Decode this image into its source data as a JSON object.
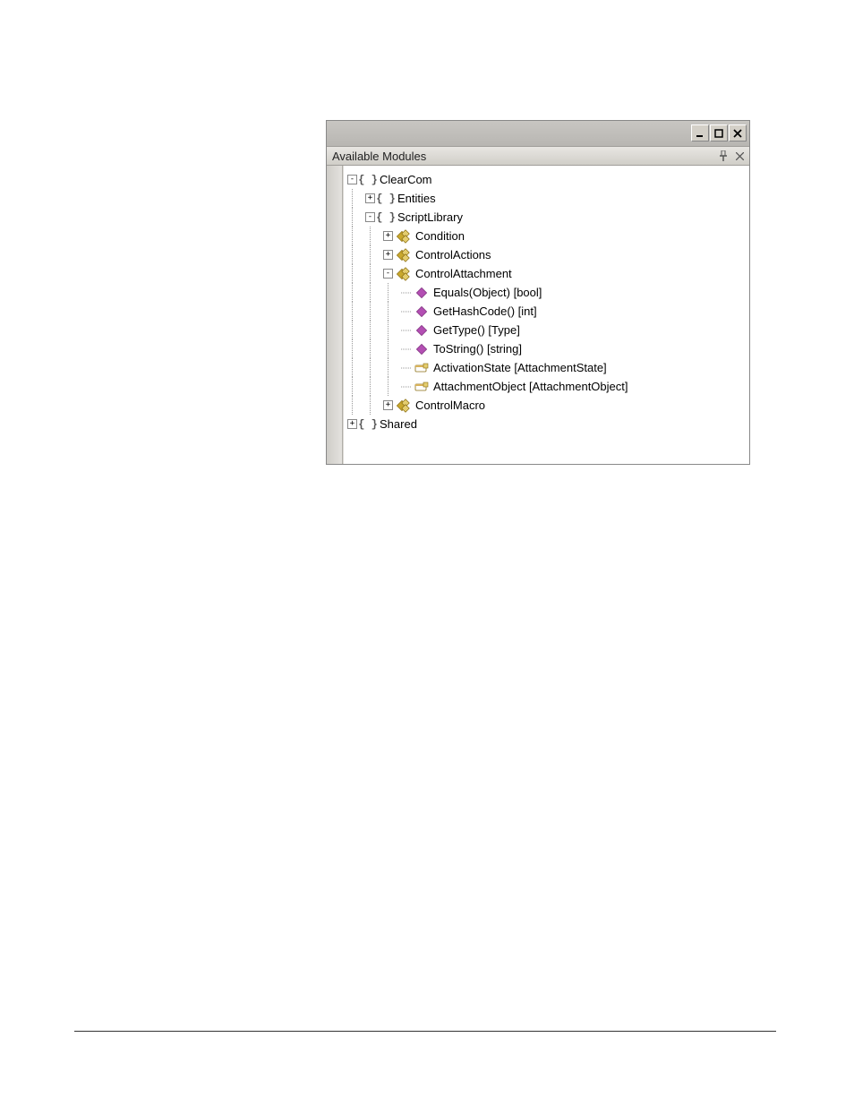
{
  "panel": {
    "title": "Available Modules"
  },
  "colors": {
    "titlebar_bg": "#c0beb9",
    "panel_header_bg": "#dcdad4",
    "tree_bg": "#ffffff",
    "text": "#000000",
    "dotted_line": "#999999",
    "class_icon": "#c9a82e",
    "method_icon": "#b34fb3",
    "property_icon": "#d9b25a",
    "braces_icon": "#666666"
  },
  "tree": {
    "nodes": [
      {
        "id": "ClearCom",
        "label": "ClearCom",
        "depth": 0,
        "icon": "namespace",
        "expander": "minus"
      },
      {
        "id": "Entities",
        "label": "Entities",
        "depth": 1,
        "icon": "namespace",
        "expander": "plus"
      },
      {
        "id": "ScriptLibrary",
        "label": "ScriptLibrary",
        "depth": 1,
        "icon": "namespace",
        "expander": "minus"
      },
      {
        "id": "Condition",
        "label": "Condition",
        "depth": 2,
        "icon": "class",
        "expander": "plus"
      },
      {
        "id": "ControlActions",
        "label": "ControlActions",
        "depth": 2,
        "icon": "class",
        "expander": "plus"
      },
      {
        "id": "ControlAttachment",
        "label": "ControlAttachment",
        "depth": 2,
        "icon": "class",
        "expander": "minus"
      },
      {
        "id": "Equals",
        "label": "Equals(Object) [bool]",
        "depth": 3,
        "icon": "method",
        "expander": "none"
      },
      {
        "id": "GetHashCode",
        "label": "GetHashCode() [int]",
        "depth": 3,
        "icon": "method",
        "expander": "none"
      },
      {
        "id": "GetType",
        "label": "GetType() [Type]",
        "depth": 3,
        "icon": "method",
        "expander": "none"
      },
      {
        "id": "ToString",
        "label": "ToString() [string]",
        "depth": 3,
        "icon": "method",
        "expander": "none"
      },
      {
        "id": "ActivationState",
        "label": "ActivationState [AttachmentState]",
        "depth": 3,
        "icon": "property",
        "expander": "none"
      },
      {
        "id": "AttachmentObject",
        "label": "AttachmentObject [AttachmentObject]",
        "depth": 3,
        "icon": "property",
        "expander": "none"
      },
      {
        "id": "ControlMacro",
        "label": "ControlMacro",
        "depth": 2,
        "icon": "class",
        "expander": "plus"
      },
      {
        "id": "Shared",
        "label": "Shared",
        "depth": 0,
        "icon": "namespace",
        "expander": "plus"
      }
    ]
  }
}
